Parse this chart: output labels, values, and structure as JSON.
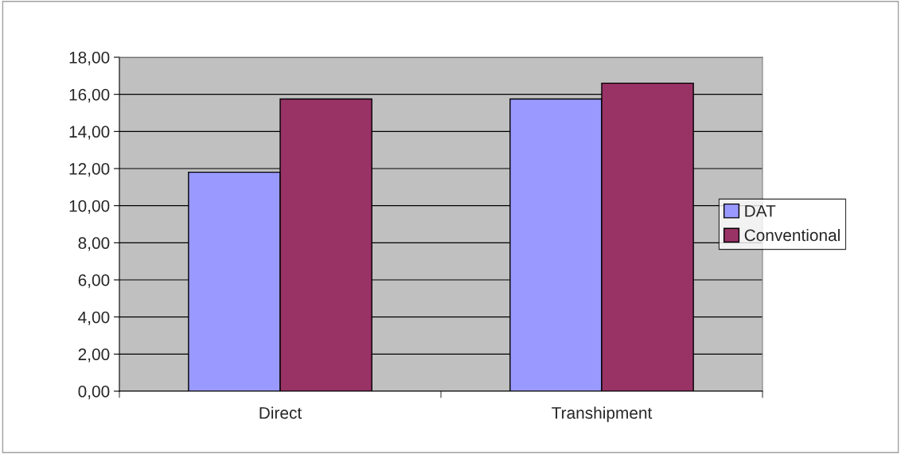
{
  "chart_data": {
    "type": "bar",
    "categories": [
      "Direct",
      "Transhipment"
    ],
    "series": [
      {
        "name": "DAT",
        "color": "#9999ff",
        "values": [
          11.8,
          15.75
        ]
      },
      {
        "name": "Conventional",
        "color": "#993366",
        "values": [
          15.75,
          16.6
        ]
      }
    ],
    "ylim": [
      0,
      18
    ],
    "yticks": [
      {
        "value": 0,
        "label": "0,00"
      },
      {
        "value": 2,
        "label": "2,00"
      },
      {
        "value": 4,
        "label": "4,00"
      },
      {
        "value": 6,
        "label": "6,00"
      },
      {
        "value": 8,
        "label": "8,00"
      },
      {
        "value": 10,
        "label": "10,00"
      },
      {
        "value": 12,
        "label": "12,00"
      },
      {
        "value": 14,
        "label": "14,00"
      },
      {
        "value": 16,
        "label": "16,00"
      },
      {
        "value": 18,
        "label": "18,00"
      }
    ],
    "grid": "y",
    "legend": "right"
  }
}
